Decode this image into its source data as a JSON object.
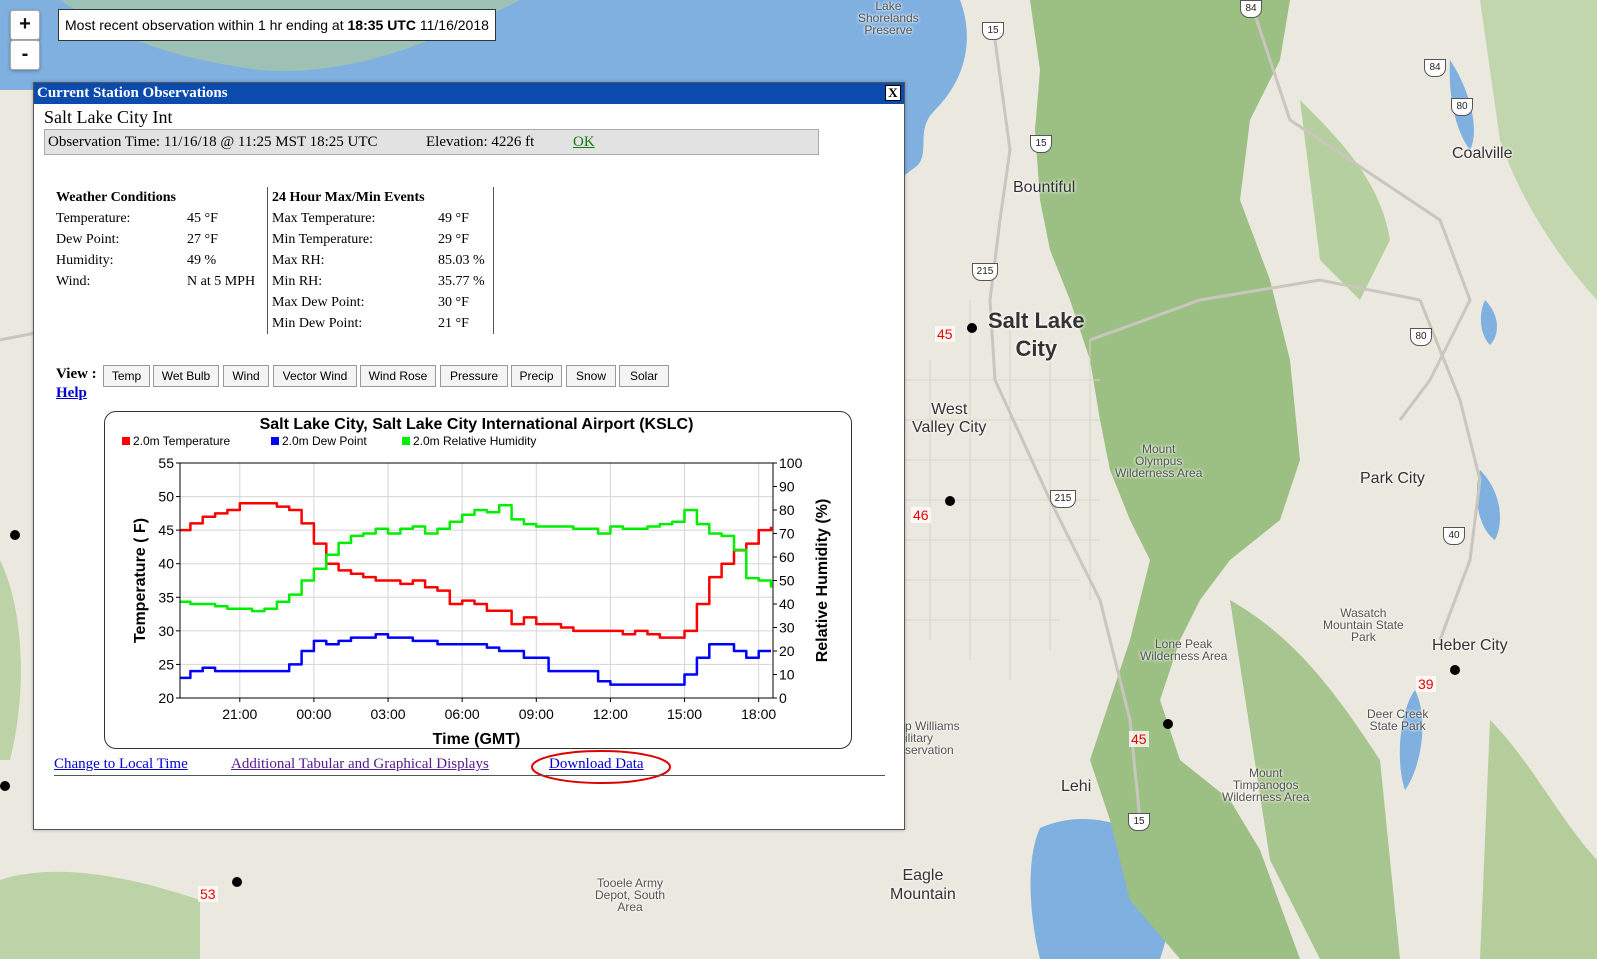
{
  "map": {
    "observation_note_prefix": "Most recent observation within 1 hr ending at",
    "observation_note_time": "18:35 UTC",
    "observation_note_date": "11/16/2018",
    "zoom_in": "+",
    "zoom_out": "-",
    "labels": {
      "lake_shorelands": "Lake\nShorelands\nPreserve",
      "bountiful": "Bountiful",
      "coalville": "Coalville",
      "salt_lake_city": "Salt Lake\nCity",
      "west_valley_city": "West\nValley City",
      "mount_olympus": "Mount\nOlympus\nWilderness Area",
      "park_city": "Park City",
      "wasatch": "Wasatch\nMountain State\nPark",
      "heber_city": "Heber City",
      "lone_peak": "Lone Peak\nWilderness Area",
      "deer_creek": "Deer Creek\nState Park",
      "williams": "p Williams\nilitary\nservation",
      "lehi": "Lehi",
      "mount_timpanogos": "Mount\nTimpanogos\nWilderness Area",
      "eagle_mountain": "Eagle\nMountain",
      "tooele": "Tooele Army\nDepot, South\nArea"
    },
    "station_values": {
      "slc": "45",
      "west": "46",
      "south": "45",
      "heber": "39",
      "tooele": "53"
    },
    "shields": {
      "i84": "84",
      "i84b": "84",
      "i80": "80",
      "i15a": "15",
      "i15b": "15",
      "i215a": "215",
      "i215b": "215",
      "i80b": "80",
      "i40": "40",
      "i15c": "15"
    }
  },
  "popup": {
    "title": "Current Station Observations",
    "close": "X",
    "station_name": "Salt Lake City Int",
    "observation_time": "Observation Time: 11/16/18 @ 11:25 MST  18:25 UTC",
    "elevation": "Elevation: 4226 ft",
    "ok": "OK",
    "conditions": {
      "heading": "Weather Conditions",
      "rows": [
        {
          "label": "Temperature:",
          "value": "45 °F"
        },
        {
          "label": "Dew Point:",
          "value": "27 °F"
        },
        {
          "label": "Humidity:",
          "value": "49 %"
        },
        {
          "label": "Wind:",
          "value": "N at 5 MPH"
        }
      ]
    },
    "maxmin": {
      "heading": "24 Hour Max/Min Events",
      "rows": [
        {
          "label": "Max Temperature:",
          "value": "49 °F"
        },
        {
          "label": "Min Temperature:",
          "value": "29 °F"
        },
        {
          "label": "Max RH:",
          "value": "85.03 %"
        },
        {
          "label": "Min RH:",
          "value": "35.77 %"
        },
        {
          "label": "Max Dew Point:",
          "value": "30 °F"
        },
        {
          "label": "Min Dew Point:",
          "value": "21 °F"
        }
      ]
    },
    "view_label": "View :",
    "view_buttons": [
      "Temp",
      "Wet Bulb",
      "Wind",
      "Vector Wind",
      "Wind Rose",
      "Pressure",
      "Precip",
      "Snow",
      "Solar"
    ],
    "help": "Help",
    "links": {
      "local_time": "Change to Local Time",
      "tabular": "Additional Tabular and Graphical Displays",
      "download": "Download Data"
    }
  },
  "colors": {
    "title_bar": "#0a4bad",
    "temp": "#ff0000",
    "dew": "#0000ff",
    "rh": "#00ee00",
    "highlight": "#e00000"
  },
  "chart_data": {
    "type": "line",
    "title": "Salt Lake City, Salt Lake City International Airport (KSLC)",
    "xlabel": "Time (GMT)",
    "ylabel": "Temperature ( F)",
    "y2label": "Relative Humidity (%)",
    "x_ticks": [
      "21:00",
      "00:00",
      "03:00",
      "06:00",
      "09:00",
      "12:00",
      "15:00",
      "18:00"
    ],
    "x_tick_hours": [
      21,
      24,
      27,
      30,
      33,
      36,
      39,
      42
    ],
    "xlim_hours": [
      18.58,
      42.58
    ],
    "ylim": [
      20,
      55
    ],
    "y_ticks": [
      20,
      25,
      30,
      35,
      40,
      45,
      50,
      55
    ],
    "y2lim": [
      0,
      100
    ],
    "y2_ticks": [
      0,
      10,
      20,
      30,
      40,
      50,
      60,
      70,
      80,
      90,
      100
    ],
    "legend_position": "top",
    "grid": true,
    "series": [
      {
        "name": "2.0m Temperature",
        "axis": "left",
        "color": "#ff0000",
        "x": [
          18.6,
          19.0,
          19.5,
          20.0,
          20.5,
          21.0,
          21.5,
          22.0,
          22.5,
          23.0,
          23.5,
          24.0,
          24.5,
          25.0,
          25.5,
          26.0,
          26.5,
          27.0,
          27.5,
          28.0,
          28.5,
          29.0,
          29.5,
          30.0,
          30.5,
          31.0,
          31.5,
          32.0,
          32.5,
          33.0,
          33.5,
          34.0,
          34.5,
          35.0,
          35.5,
          36.0,
          36.5,
          37.0,
          37.5,
          38.0,
          38.5,
          39.0,
          39.5,
          40.0,
          40.5,
          41.0,
          41.5,
          42.0,
          42.5
        ],
        "values": [
          45,
          46,
          47,
          47.5,
          48,
          49,
          49,
          49,
          48.5,
          48,
          46,
          43,
          40,
          39,
          38.5,
          38,
          37.5,
          37.5,
          37,
          37.5,
          36.5,
          36,
          34,
          34.5,
          34,
          33,
          33,
          31,
          32,
          31,
          31,
          30.5,
          30,
          30,
          30,
          30,
          29.5,
          30,
          29.5,
          29,
          29,
          30,
          34,
          38,
          40,
          42,
          43,
          45,
          45.5
        ]
      },
      {
        "name": "2.0m Dew Point",
        "axis": "left",
        "color": "#0000ff",
        "x": [
          18.6,
          19.0,
          19.5,
          20.0,
          20.5,
          21.0,
          21.5,
          22.0,
          22.5,
          23.0,
          23.5,
          24.0,
          24.5,
          25.0,
          25.5,
          26.0,
          26.5,
          27.0,
          27.5,
          28.0,
          28.5,
          29.0,
          29.5,
          30.0,
          30.5,
          31.0,
          31.5,
          32.0,
          32.5,
          33.0,
          33.5,
          34.0,
          34.5,
          35.0,
          35.5,
          36.0,
          36.5,
          37.0,
          37.5,
          38.0,
          38.5,
          39.0,
          39.5,
          40.0,
          40.5,
          41.0,
          41.5,
          42.0,
          42.5
        ],
        "values": [
          23,
          24,
          24.5,
          24,
          24,
          24,
          24,
          24,
          24,
          25,
          27,
          28.5,
          28,
          28.5,
          29,
          29,
          29.5,
          29,
          29,
          28.5,
          28.5,
          28,
          28,
          28,
          28,
          27.5,
          27,
          27,
          26,
          26,
          24,
          24,
          24,
          24,
          22.5,
          22,
          22,
          22,
          22,
          22,
          22,
          23.5,
          26,
          28,
          28,
          27,
          26,
          27,
          27
        ]
      },
      {
        "name": "2.0m Relative Humidity",
        "axis": "right",
        "color": "#00ee00",
        "x": [
          18.6,
          19.0,
          19.5,
          20.0,
          20.5,
          21.0,
          21.5,
          22.0,
          22.5,
          23.0,
          23.5,
          24.0,
          24.5,
          25.0,
          25.5,
          26.0,
          26.5,
          27.0,
          27.5,
          28.0,
          28.5,
          29.0,
          29.5,
          30.0,
          30.5,
          31.0,
          31.5,
          32.0,
          32.5,
          33.0,
          33.5,
          34.0,
          34.5,
          35.0,
          35.5,
          36.0,
          36.5,
          37.0,
          37.5,
          38.0,
          38.5,
          39.0,
          39.5,
          40.0,
          40.5,
          41.0,
          41.5,
          42.0,
          42.5
        ],
        "values": [
          41,
          40,
          40,
          39,
          38,
          38,
          37,
          38,
          41,
          44,
          50,
          55,
          61,
          66,
          69,
          70,
          72,
          70,
          72,
          73,
          70,
          72,
          75,
          78,
          80,
          79,
          82,
          76,
          74,
          73,
          73,
          73,
          72,
          72,
          70,
          73,
          72,
          72,
          73,
          74,
          75,
          80,
          74,
          70,
          69,
          63,
          51,
          50,
          47
        ]
      }
    ]
  }
}
